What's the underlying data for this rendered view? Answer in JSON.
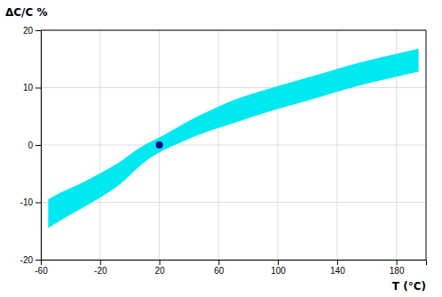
{
  "chart_data": {
    "type": "area",
    "xlabel": "T  (°C)",
    "ylabel": "ΔC/C %",
    "xlim": [
      -60,
      200
    ],
    "ylim": [
      -20,
      20
    ],
    "xticks": [
      -60,
      -20,
      20,
      60,
      100,
      140,
      180
    ],
    "yticks": [
      -20,
      -10,
      0,
      10,
      20
    ],
    "grid": true,
    "series": [
      {
        "type": "area",
        "color": "#00E8F0",
        "x": [
          -55,
          -45,
          -30,
          -10,
          0,
          10,
          20,
          35,
          50,
          70,
          90,
          110,
          130,
          150,
          170,
          195
        ],
        "low": [
          -14.5,
          -12.9,
          -10.7,
          -7.5,
          -5.3,
          -3.0,
          -1.3,
          0.5,
          2.1,
          3.8,
          5.5,
          7.0,
          8.5,
          10.0,
          11.3,
          12.8
        ],
        "high": [
          -9.5,
          -8.1,
          -6.3,
          -3.5,
          -1.7,
          0.0,
          1.3,
          3.5,
          5.5,
          7.8,
          9.5,
          11.0,
          12.5,
          14.0,
          15.3,
          16.8
        ]
      },
      {
        "type": "scatter",
        "color": "#000080",
        "x": [
          20
        ],
        "values": [
          0
        ]
      }
    ]
  }
}
